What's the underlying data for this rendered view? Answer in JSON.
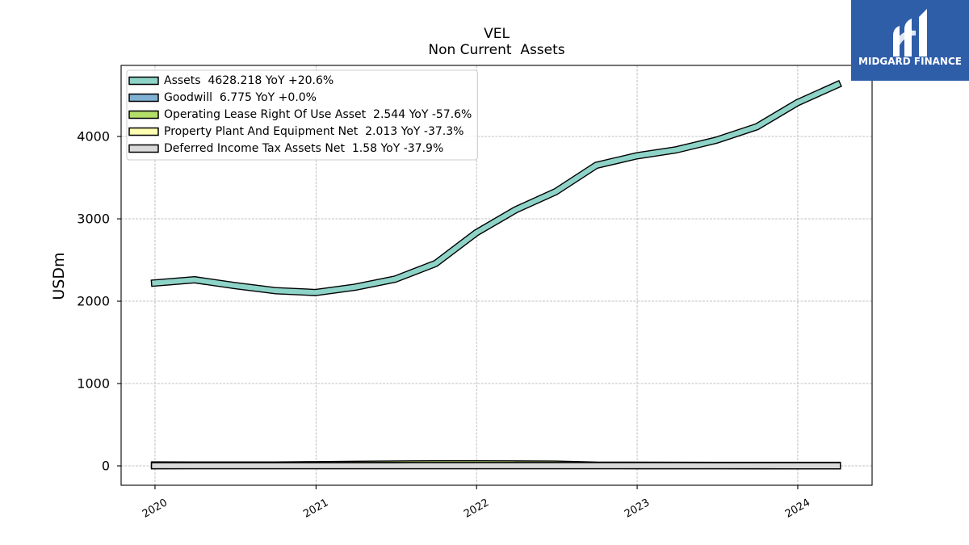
{
  "logo": {
    "text": "MIDGARD FINANCE",
    "icon": "midgard-m-logo",
    "background_color": "#2f5ea9",
    "text_color": "#ffffff"
  },
  "chart_data": {
    "type": "line",
    "title": "VEL",
    "subtitle": "Non Current  Assets",
    "ylabel": "USDm",
    "x": [
      "2019-12-31",
      "2020-03-31",
      "2020-06-30",
      "2020-09-30",
      "2020-12-31",
      "2021-03-31",
      "2021-06-30",
      "2021-09-30",
      "2021-12-31",
      "2022-03-31",
      "2022-06-30",
      "2022-09-30",
      "2022-12-31",
      "2023-03-31",
      "2023-06-30",
      "2023-09-30",
      "2023-12-31",
      "2024-03-31"
    ],
    "series": [
      {
        "name": "Assets  4628.218 YoY +20.6%",
        "color": "#8dd3c7",
        "values": [
          2221,
          2260,
          2190,
          2128,
          2105,
          2170,
          2268,
          2458,
          2830,
          3110,
          3330,
          3650,
          3765,
          3838,
          3955,
          4118,
          4410,
          4628.218
        ]
      },
      {
        "name": "Goodwill  6.775 YoY +0.0%",
        "color": "#80b1d3",
        "values": [
          6.775,
          6.775,
          6.775,
          6.775,
          6.775,
          6.775,
          6.775,
          6.775,
          6.775,
          6.775,
          6.775,
          6.775,
          6.775,
          6.775,
          6.775,
          6.775,
          6.775,
          6.775
        ]
      },
      {
        "name": "Operating Lease Right Of Use Asset  2.544 YoY -57.6%",
        "color": "#b3de69",
        "values": [
          11.2,
          10.6,
          10.1,
          9.8,
          14.3,
          18.7,
          22.9,
          25.4,
          24.8,
          23.1,
          21.6,
          8.4,
          7.1,
          6.0,
          4.9,
          3.9,
          3.2,
          2.544
        ]
      },
      {
        "name": "Property Plant And Equipment Net  2.013 YoY -37.3%",
        "color": "#ffffb3",
        "values": [
          4.1,
          4.0,
          3.9,
          3.8,
          3.9,
          3.9,
          4.0,
          4.1,
          4.2,
          4.0,
          3.8,
          3.5,
          3.3,
          3.21,
          2.9,
          2.6,
          2.3,
          2.013
        ]
      },
      {
        "name": "Deferred Income Tax Assets Net  1.58 YoY -37.9%",
        "color": "#d9d9d9",
        "values": [
          2.1,
          2.2,
          2.2,
          2.3,
          2.3,
          2.4,
          2.4,
          2.5,
          2.5,
          2.6,
          2.6,
          2.5,
          2.5,
          2.544,
          2.3,
          2.0,
          1.8,
          1.58
        ]
      }
    ],
    "xlim": [
      "2019-10-16",
      "2024-06-18"
    ],
    "ylim": [
      -235,
      4863
    ],
    "x_ticks": [
      "2020-01-01",
      "2021-01-01",
      "2022-01-01",
      "2023-01-01",
      "2024-01-01"
    ],
    "x_tick_labels": [
      "2020",
      "2021",
      "2022",
      "2023",
      "2024"
    ],
    "y_ticks": [
      0,
      1000,
      2000,
      3000,
      4000
    ],
    "y_tick_labels": [
      "0",
      "1000",
      "2000",
      "3000",
      "4000"
    ],
    "grid": true,
    "legend_position": "upper left",
    "line_outline_color": "#000000"
  }
}
